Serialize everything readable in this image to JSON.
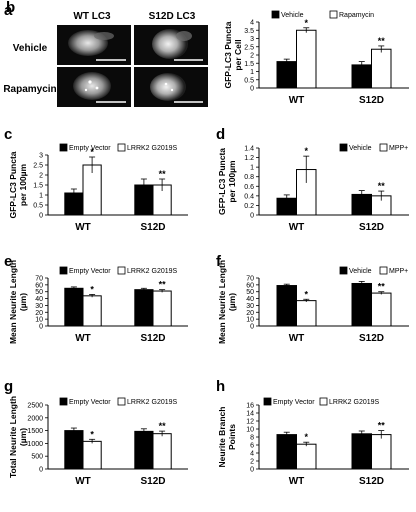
{
  "panel_a": {
    "letter": "a",
    "column_headers": [
      "WT LC3",
      "S12D LC3"
    ],
    "row_labels": [
      "Vehicle",
      "Rapamycin"
    ]
  },
  "chart_data": [
    {
      "id": "b",
      "type": "bar",
      "letter": "b",
      "categories": [
        "WT",
        "S12D"
      ],
      "ylabel": [
        "GFP-LC3 Puncta",
        "per Cell"
      ],
      "ylim": [
        0,
        4
      ],
      "yticks": [
        0,
        0.5,
        1,
        1.5,
        2,
        2.5,
        3,
        3.5,
        4
      ],
      "legend": "top-right",
      "series": [
        {
          "name": "Vehicle",
          "color": "#000000",
          "values": [
            1.6,
            1.4
          ],
          "errors": [
            0.15,
            0.2
          ],
          "marks": [
            "",
            ""
          ]
        },
        {
          "name": "Rapamycin",
          "color": "#ffffff",
          "values": [
            3.5,
            2.35
          ],
          "errors": [
            0.15,
            0.2
          ],
          "marks": [
            "*",
            "**"
          ]
        }
      ]
    },
    {
      "id": "c",
      "type": "bar",
      "letter": "c",
      "categories": [
        "WT",
        "S12D"
      ],
      "ylabel": [
        "GFP-LC3 Puncta",
        "per 100µm"
      ],
      "ylim": [
        0,
        3
      ],
      "yticks": [
        0,
        0.5,
        1,
        1.5,
        2,
        2.5,
        3
      ],
      "legend": "top",
      "series": [
        {
          "name": "Empty Vector",
          "color": "#000000",
          "values": [
            1.1,
            1.5
          ],
          "errors": [
            0.2,
            0.3
          ],
          "marks": [
            "",
            ""
          ]
        },
        {
          "name": "LRRK2 G2019S",
          "color": "#ffffff",
          "values": [
            2.5,
            1.5
          ],
          "errors": [
            0.4,
            0.3
          ],
          "marks": [
            "*",
            "**"
          ]
        }
      ]
    },
    {
      "id": "d",
      "type": "bar",
      "letter": "d",
      "categories": [
        "WT",
        "S12D"
      ],
      "ylabel": [
        "GFP-LC3 Puncta",
        "per 100µm"
      ],
      "ylim": [
        0,
        1.4
      ],
      "yticks": [
        0,
        0.2,
        0.4,
        0.6,
        0.8,
        1,
        1.2,
        1.4
      ],
      "legend": "top-right",
      "series": [
        {
          "name": "Vehicle",
          "color": "#000000",
          "values": [
            0.35,
            0.43
          ],
          "errors": [
            0.07,
            0.08
          ],
          "marks": [
            "",
            ""
          ]
        },
        {
          "name": "MPP+",
          "color": "#ffffff",
          "values": [
            0.95,
            0.4
          ],
          "errors": [
            0.28,
            0.1
          ],
          "marks": [
            "*",
            "**"
          ]
        }
      ]
    },
    {
      "id": "e",
      "type": "bar",
      "letter": "e",
      "categories": [
        "WT",
        "S12D"
      ],
      "ylabel": [
        "Mean Neurite Length",
        "(µm)"
      ],
      "ylim": [
        0,
        70
      ],
      "yticks": [
        0,
        10,
        20,
        30,
        40,
        50,
        60,
        70
      ],
      "legend": "top",
      "series": [
        {
          "name": "Empty Vector",
          "color": "#000000",
          "values": [
            55,
            53
          ],
          "errors": [
            2,
            2
          ],
          "marks": [
            "",
            ""
          ]
        },
        {
          "name": "LRRK2 G2019S",
          "color": "#ffffff",
          "values": [
            44,
            51
          ],
          "errors": [
            2,
            2
          ],
          "marks": [
            "*",
            "**"
          ]
        }
      ]
    },
    {
      "id": "f",
      "type": "bar",
      "letter": "f",
      "categories": [
        "WT",
        "S12D"
      ],
      "ylabel": [
        "Mean Neurite Length",
        "(µm)"
      ],
      "ylim": [
        0,
        70
      ],
      "yticks": [
        0,
        10,
        20,
        30,
        40,
        50,
        60,
        70
      ],
      "legend": "top-right",
      "series": [
        {
          "name": "Vehicle",
          "color": "#000000",
          "values": [
            59,
            62
          ],
          "errors": [
            2,
            3
          ],
          "marks": [
            "",
            ""
          ]
        },
        {
          "name": "MPP+",
          "color": "#ffffff",
          "values": [
            37,
            48
          ],
          "errors": [
            2,
            2
          ],
          "marks": [
            "*",
            "**"
          ]
        }
      ]
    },
    {
      "id": "g",
      "type": "bar",
      "letter": "g",
      "categories": [
        "WT",
        "S12D"
      ],
      "ylabel": [
        "Total Neurite Length",
        "(µm)"
      ],
      "ylim": [
        0,
        2500
      ],
      "yticks": [
        0,
        500,
        1000,
        1500,
        2000,
        2500
      ],
      "legend": "top",
      "series": [
        {
          "name": "Empty Vector",
          "color": "#000000",
          "values": [
            1500,
            1470
          ],
          "errors": [
            100,
            100
          ],
          "marks": [
            "",
            ""
          ]
        },
        {
          "name": "LRRK2 G2019S",
          "color": "#ffffff",
          "values": [
            1080,
            1380
          ],
          "errors": [
            80,
            100
          ],
          "marks": [
            "*",
            "**"
          ]
        }
      ]
    },
    {
      "id": "h",
      "type": "bar",
      "letter": "h",
      "categories": [
        "WT",
        "S12D"
      ],
      "ylabel": [
        "Neurite Branch",
        "Points"
      ],
      "ylim": [
        0,
        16
      ],
      "yticks": [
        0,
        2,
        4,
        6,
        8,
        10,
        12,
        14,
        16
      ],
      "legend": "top",
      "series": [
        {
          "name": "Empty Vector",
          "color": "#000000",
          "values": [
            8.6,
            8.8
          ],
          "errors": [
            0.6,
            0.7
          ],
          "marks": [
            "",
            ""
          ]
        },
        {
          "name": "LRRK2 G2019S",
          "color": "#ffffff",
          "values": [
            6.2,
            8.6
          ],
          "errors": [
            0.5,
            1.0
          ],
          "marks": [
            "*",
            "**"
          ]
        }
      ]
    }
  ]
}
